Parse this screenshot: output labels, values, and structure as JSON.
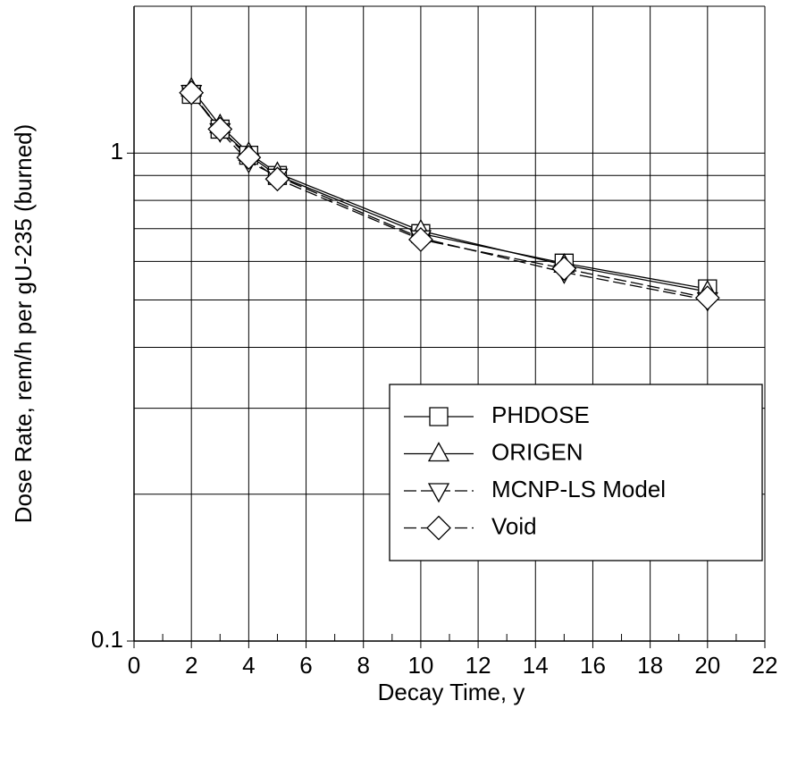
{
  "chart_data": {
    "type": "line",
    "x_label": "Decay Time, y",
    "y_label": "Dose Rate, rem/h per gU-235 (burned)",
    "x": [
      2,
      3,
      4,
      5,
      10,
      15,
      20
    ],
    "series": [
      {
        "name": "PHDOSE",
        "color": "#000000",
        "marker": "square",
        "dash": "solid",
        "values": [
          1.32,
          1.12,
          0.99,
          0.9,
          0.684,
          0.595,
          0.527
        ]
      },
      {
        "name": "ORIGEN",
        "color": "#000000",
        "marker": "triangle-up",
        "dash": "solid",
        "values": [
          1.355,
          1.14,
          1.0,
          0.91,
          0.693,
          0.59,
          0.52
        ]
      },
      {
        "name": "MCNP-LS Model",
        "color": "#000000",
        "marker": "triangle-down",
        "dash": "dashed",
        "values": [
          1.33,
          1.11,
          0.96,
          0.896,
          0.67,
          0.57,
          0.5
        ]
      },
      {
        "name": "Void",
        "color": "#000000",
        "marker": "diamond",
        "dash": "dashed",
        "values": [
          1.33,
          1.12,
          0.98,
          0.885,
          0.665,
          0.58,
          0.505
        ]
      }
    ],
    "xlim": [
      0,
      22
    ],
    "xticks": [
      0,
      2,
      4,
      6,
      8,
      10,
      12,
      14,
      16,
      18,
      20,
      22
    ],
    "x_minor_ticks": [
      1,
      3,
      5,
      7,
      9,
      11,
      13,
      15,
      17,
      19,
      21
    ],
    "ylim": [
      0.1,
      2
    ],
    "y_scale": "log",
    "yticks": [
      0.1,
      1
    ],
    "y_minor_ticks": [
      0.2,
      0.3,
      0.4,
      0.5,
      0.6,
      0.7,
      0.8,
      0.9,
      2
    ],
    "grid": true,
    "legend_position": "lower right"
  }
}
